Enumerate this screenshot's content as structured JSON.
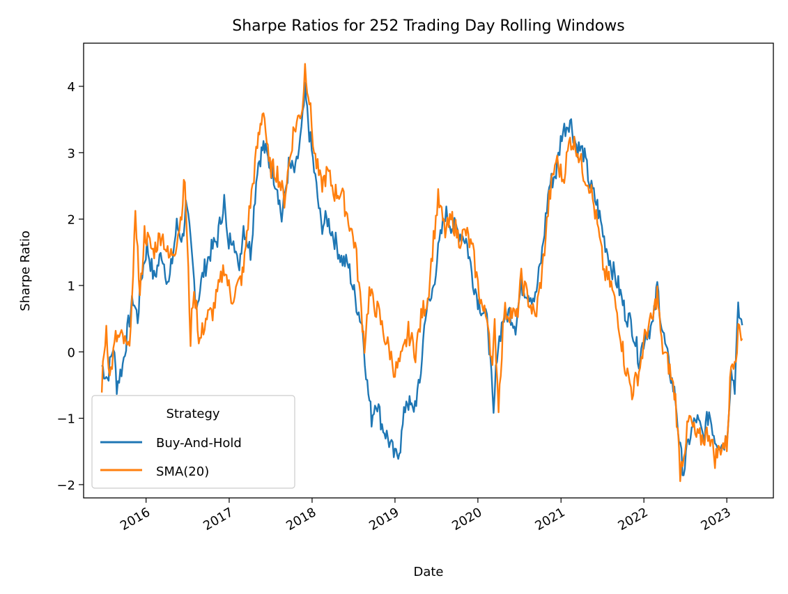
{
  "chart_data": {
    "type": "line",
    "title": "Sharpe Ratios for 252 Trading Day Rolling Windows",
    "xlabel": "Date",
    "ylabel": "Sharpe Ratio",
    "xlim": [
      "2015-04-01",
      "2023-07-25"
    ],
    "ylim": [
      -2.2,
      4.65
    ],
    "x_ticks": [
      "2016-01-01",
      "2017-01-01",
      "2018-01-01",
      "2019-01-01",
      "2020-01-01",
      "2021-01-01",
      "2022-01-01",
      "2023-01-01"
    ],
    "x_tick_labels": [
      "2016",
      "2017",
      "2018",
      "2019",
      "2020",
      "2021",
      "2022",
      "2023"
    ],
    "y_ticks": [
      4,
      3,
      2,
      1,
      0,
      -1,
      -2
    ],
    "y_tick_labels": [
      "4",
      "3",
      "2",
      "1",
      "0",
      "−1",
      "−2"
    ],
    "grid": false,
    "legend": {
      "title": "Strategy",
      "placement": "lower-left"
    },
    "series": [
      {
        "name": "Buy-And-Hold",
        "color": "#1f77b4",
        "points": [
          [
            "2015-06-20",
            -0.2
          ],
          [
            "2015-07-15",
            -0.4
          ],
          [
            "2015-08-10",
            0.1
          ],
          [
            "2015-08-25",
            -0.5
          ],
          [
            "2015-09-20",
            -0.2
          ],
          [
            "2015-10-15",
            0.4
          ],
          [
            "2015-11-05",
            0.8
          ],
          [
            "2015-11-25",
            0.5
          ],
          [
            "2015-12-10",
            1.1
          ],
          [
            "2016-01-05",
            1.6
          ],
          [
            "2016-02-05",
            1.1
          ],
          [
            "2016-03-10",
            1.5
          ],
          [
            "2016-04-10",
            1.0
          ],
          [
            "2016-05-15",
            1.9
          ],
          [
            "2016-06-10",
            1.7
          ],
          [
            "2016-06-24",
            2.2
          ],
          [
            "2016-07-10",
            1.8
          ],
          [
            "2016-08-10",
            0.7
          ],
          [
            "2016-09-10",
            1.2
          ],
          [
            "2016-10-10",
            1.5
          ],
          [
            "2016-11-10",
            1.7
          ],
          [
            "2016-12-10",
            2.3
          ],
          [
            "2016-12-25",
            1.6
          ],
          [
            "2017-01-20",
            1.8
          ],
          [
            "2017-02-10",
            1.2
          ],
          [
            "2017-03-05",
            1.9
          ],
          [
            "2017-04-05",
            1.5
          ],
          [
            "2017-05-05",
            2.8
          ],
          [
            "2017-06-01",
            3.1
          ],
          [
            "2017-07-01",
            2.8
          ],
          [
            "2017-08-01",
            2.5
          ],
          [
            "2017-08-20",
            2.0
          ],
          [
            "2017-09-20",
            2.8
          ],
          [
            "2017-10-20",
            2.7
          ],
          [
            "2017-11-15",
            3.3
          ],
          [
            "2017-12-01",
            3.9
          ],
          [
            "2017-12-20",
            3.3
          ],
          [
            "2018-01-15",
            2.6
          ],
          [
            "2018-02-10",
            1.9
          ],
          [
            "2018-03-10",
            2.0
          ],
          [
            "2018-04-10",
            1.7
          ],
          [
            "2018-05-10",
            1.4
          ],
          [
            "2018-06-10",
            1.3
          ],
          [
            "2018-07-10",
            0.8
          ],
          [
            "2018-08-10",
            0.4
          ],
          [
            "2018-09-01",
            -0.5
          ],
          [
            "2018-09-20",
            -1.0
          ],
          [
            "2018-10-10",
            -0.7
          ],
          [
            "2018-11-05",
            -1.1
          ],
          [
            "2018-12-01",
            -1.3
          ],
          [
            "2019-01-01",
            -1.6
          ],
          [
            "2019-01-25",
            -1.4
          ],
          [
            "2019-02-20",
            -0.7
          ],
          [
            "2019-03-20",
            -0.9
          ],
          [
            "2019-04-20",
            -0.5
          ],
          [
            "2019-05-15",
            0.6
          ],
          [
            "2019-06-10",
            0.8
          ],
          [
            "2019-07-10",
            1.5
          ],
          [
            "2019-08-10",
            2.1
          ],
          [
            "2019-09-10",
            1.9
          ],
          [
            "2019-10-10",
            1.8
          ],
          [
            "2019-11-10",
            1.7
          ],
          [
            "2019-12-10",
            1.1
          ],
          [
            "2020-01-01",
            0.8
          ],
          [
            "2020-01-25",
            0.6
          ],
          [
            "2020-02-15",
            0.4
          ],
          [
            "2020-03-10",
            -1.0
          ],
          [
            "2020-03-25",
            0.0
          ],
          [
            "2020-04-20",
            0.5
          ],
          [
            "2020-05-20",
            0.6
          ],
          [
            "2020-06-15",
            0.4
          ],
          [
            "2020-07-10",
            1.0
          ],
          [
            "2020-08-10",
            0.9
          ],
          [
            "2020-09-10",
            0.8
          ],
          [
            "2020-10-10",
            1.5
          ],
          [
            "2020-11-10",
            2.5
          ],
          [
            "2020-12-10",
            2.7
          ],
          [
            "2021-01-05",
            3.3
          ],
          [
            "2021-02-10",
            3.5
          ],
          [
            "2021-03-10",
            3.1
          ],
          [
            "2021-04-10",
            3.0
          ],
          [
            "2021-05-10",
            2.5
          ],
          [
            "2021-06-10",
            2.2
          ],
          [
            "2021-07-10",
            1.7
          ],
          [
            "2021-08-10",
            1.3
          ],
          [
            "2021-09-10",
            1.0
          ],
          [
            "2021-10-10",
            0.6
          ],
          [
            "2021-11-10",
            0.4
          ],
          [
            "2021-12-10",
            -0.1
          ],
          [
            "2022-01-10",
            0.3
          ],
          [
            "2022-02-10",
            0.4
          ],
          [
            "2022-03-01",
            1.0
          ],
          [
            "2022-03-20",
            0.4
          ],
          [
            "2022-04-20",
            -0.2
          ],
          [
            "2022-05-20",
            -0.7
          ],
          [
            "2022-06-10",
            -1.5
          ],
          [
            "2022-06-25",
            -1.8
          ],
          [
            "2022-07-20",
            -1.3
          ],
          [
            "2022-08-20",
            -1.0
          ],
          [
            "2022-09-20",
            -1.3
          ],
          [
            "2022-10-15",
            -0.9
          ],
          [
            "2022-11-10",
            -1.3
          ],
          [
            "2022-12-10",
            -1.4
          ],
          [
            "2023-01-01",
            -1.3
          ],
          [
            "2023-01-20",
            -0.3
          ],
          [
            "2023-02-05",
            -0.5
          ],
          [
            "2023-02-20",
            0.6
          ],
          [
            "2023-03-10",
            0.4
          ]
        ]
      },
      {
        "name": "SMA(20)",
        "color": "#ff7f0e",
        "points": [
          [
            "2015-06-20",
            -0.5
          ],
          [
            "2015-07-10",
            0.4
          ],
          [
            "2015-07-25",
            -0.4
          ],
          [
            "2015-08-20",
            0.2
          ],
          [
            "2015-09-20",
            0.2
          ],
          [
            "2015-10-15",
            0.0
          ],
          [
            "2015-11-05",
            1.0
          ],
          [
            "2015-11-15",
            2.2
          ],
          [
            "2015-12-05",
            0.8
          ],
          [
            "2015-12-25",
            1.8
          ],
          [
            "2016-02-01",
            1.5
          ],
          [
            "2016-03-10",
            1.8
          ],
          [
            "2016-04-10",
            1.4
          ],
          [
            "2016-05-10",
            1.6
          ],
          [
            "2016-06-01",
            2.0
          ],
          [
            "2016-06-20",
            2.6
          ],
          [
            "2016-07-15",
            0.2
          ],
          [
            "2016-07-25",
            0.8
          ],
          [
            "2016-08-10",
            0.8
          ],
          [
            "2016-08-20",
            0.1
          ],
          [
            "2016-09-20",
            0.5
          ],
          [
            "2016-10-20",
            0.6
          ],
          [
            "2016-11-20",
            1.0
          ],
          [
            "2016-12-10",
            1.3
          ],
          [
            "2017-01-10",
            0.8
          ],
          [
            "2017-02-10",
            1.0
          ],
          [
            "2017-03-05",
            1.2
          ],
          [
            "2017-03-20",
            1.8
          ],
          [
            "2017-05-05",
            3.1
          ],
          [
            "2017-06-01",
            3.7
          ],
          [
            "2017-06-25",
            2.8
          ],
          [
            "2017-08-01",
            2.7
          ],
          [
            "2017-09-01",
            2.3
          ],
          [
            "2017-10-10",
            3.3
          ],
          [
            "2017-11-20",
            3.7
          ],
          [
            "2017-12-01",
            4.3
          ],
          [
            "2017-12-20",
            3.8
          ],
          [
            "2018-01-10",
            3.0
          ],
          [
            "2018-02-10",
            2.5
          ],
          [
            "2018-03-10",
            2.7
          ],
          [
            "2018-04-10",
            2.4
          ],
          [
            "2018-05-10",
            2.4
          ],
          [
            "2018-06-10",
            2.0
          ],
          [
            "2018-07-10",
            1.6
          ],
          [
            "2018-08-01",
            0.8
          ],
          [
            "2018-08-20",
            0.1
          ],
          [
            "2018-09-10",
            0.9
          ],
          [
            "2018-10-01",
            0.7
          ],
          [
            "2018-10-20",
            0.6
          ],
          [
            "2018-11-10",
            0.3
          ],
          [
            "2018-12-10",
            0.0
          ],
          [
            "2019-01-01",
            -0.3
          ],
          [
            "2019-02-01",
            -0.1
          ],
          [
            "2019-03-01",
            0.3
          ],
          [
            "2019-04-01",
            0.0
          ],
          [
            "2019-05-01",
            0.6
          ],
          [
            "2019-05-25",
            0.8
          ],
          [
            "2019-06-20",
            1.7
          ],
          [
            "2019-07-10",
            2.3
          ],
          [
            "2019-08-10",
            1.8
          ],
          [
            "2019-09-10",
            2.0
          ],
          [
            "2019-10-10",
            1.7
          ],
          [
            "2019-11-10",
            1.8
          ],
          [
            "2019-12-10",
            1.5
          ],
          [
            "2020-01-01",
            1.0
          ],
          [
            "2020-01-25",
            0.6
          ],
          [
            "2020-02-15",
            0.5
          ],
          [
            "2020-03-05",
            -0.3
          ],
          [
            "2020-03-15",
            0.4
          ],
          [
            "2020-04-01",
            -0.8
          ],
          [
            "2020-04-25",
            0.6
          ],
          [
            "2020-05-25",
            0.6
          ],
          [
            "2020-06-20",
            0.5
          ],
          [
            "2020-07-10",
            1.1
          ],
          [
            "2020-08-10",
            0.8
          ],
          [
            "2020-09-10",
            0.5
          ],
          [
            "2020-10-10",
            1.2
          ],
          [
            "2020-11-10",
            2.3
          ],
          [
            "2020-12-10",
            2.9
          ],
          [
            "2021-01-10",
            2.6
          ],
          [
            "2021-02-10",
            3.2
          ],
          [
            "2021-03-10",
            3.1
          ],
          [
            "2021-04-10",
            2.7
          ],
          [
            "2021-05-10",
            2.5
          ],
          [
            "2021-06-10",
            1.9
          ],
          [
            "2021-07-10",
            1.2
          ],
          [
            "2021-08-10",
            1.0
          ],
          [
            "2021-09-10",
            0.5
          ],
          [
            "2021-10-10",
            -0.2
          ],
          [
            "2021-11-10",
            -0.6
          ],
          [
            "2021-12-10",
            -0.3
          ],
          [
            "2022-01-10",
            0.3
          ],
          [
            "2022-02-10",
            0.5
          ],
          [
            "2022-03-01",
            0.9
          ],
          [
            "2022-03-20",
            0.1
          ],
          [
            "2022-04-20",
            -0.2
          ],
          [
            "2022-05-20",
            -0.7
          ],
          [
            "2022-06-10",
            -1.8
          ],
          [
            "2022-07-01",
            -1.4
          ],
          [
            "2022-07-20",
            -1.0
          ],
          [
            "2022-08-20",
            -1.3
          ],
          [
            "2022-09-20",
            -1.3
          ],
          [
            "2022-10-15",
            -1.2
          ],
          [
            "2022-11-10",
            -1.6
          ],
          [
            "2022-12-10",
            -1.4
          ],
          [
            "2023-01-01",
            -1.4
          ],
          [
            "2023-01-20",
            -0.2
          ],
          [
            "2023-02-10",
            0.0
          ],
          [
            "2023-02-25",
            0.4
          ],
          [
            "2023-03-10",
            0.2
          ]
        ]
      }
    ]
  }
}
